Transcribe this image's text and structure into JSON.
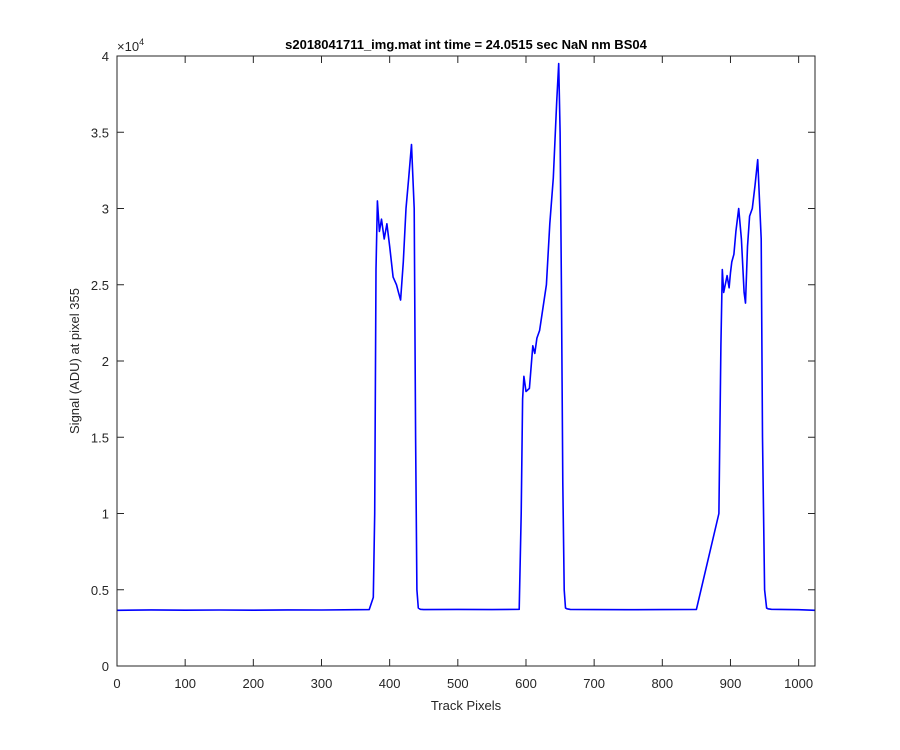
{
  "chart_data": {
    "type": "line",
    "title": "s2018041711_img.mat int time = 24.0515 sec  NaN nm BS04",
    "xlabel": "Track Pixels",
    "ylabel": "Signal (ADU) at pixel 355",
    "xlim": [
      0,
      1024
    ],
    "ylim": [
      0,
      40000
    ],
    "y_exponent_label": "×10",
    "y_exponent_power": "4",
    "xticks": [
      0,
      100,
      200,
      300,
      400,
      500,
      600,
      700,
      800,
      900,
      1000
    ],
    "xtick_labels": [
      "0",
      "100",
      "200",
      "300",
      "400",
      "500",
      "600",
      "700",
      "800",
      "900",
      "1000"
    ],
    "yticks": [
      0,
      5000,
      10000,
      15000,
      20000,
      25000,
      30000,
      35000,
      40000
    ],
    "ytick_labels": [
      "0",
      "0.5",
      "1",
      "1.5",
      "2",
      "2.5",
      "3",
      "3.5",
      "4"
    ],
    "grid": false,
    "line_color": "#0000ff",
    "series": [
      {
        "x": [
          0,
          50,
          100,
          150,
          200,
          250,
          300,
          350,
          370,
          376,
          378,
          380,
          382,
          385,
          388,
          392,
          396,
          400,
          405,
          410,
          413,
          416,
          420,
          424,
          428,
          432,
          436,
          438,
          440,
          442,
          445,
          450,
          500,
          550,
          590,
          593,
          595,
          597,
          600,
          605,
          610,
          613,
          616,
          620,
          625,
          630,
          635,
          640,
          645,
          648,
          650,
          652,
          654,
          656,
          658,
          660,
          665,
          700,
          750,
          800,
          850,
          883,
          886,
          888,
          890,
          895,
          898,
          900,
          902,
          905,
          908,
          912,
          916,
          920,
          922,
          925,
          928,
          932,
          936,
          940,
          945,
          947,
          950,
          953,
          955,
          960,
          1000,
          1024
        ],
        "y": [
          3650,
          3680,
          3660,
          3670,
          3660,
          3680,
          3670,
          3690,
          3700,
          4500,
          10000,
          26000,
          30500,
          28500,
          29300,
          28000,
          29000,
          27500,
          25500,
          25000,
          24500,
          24000,
          26500,
          30000,
          32000,
          34200,
          30000,
          15000,
          5000,
          3800,
          3720,
          3700,
          3710,
          3700,
          3720,
          10000,
          17500,
          19000,
          18000,
          18200,
          21000,
          20500,
          21500,
          22000,
          23500,
          25000,
          29000,
          32000,
          37000,
          39500,
          35000,
          25000,
          12000,
          5000,
          3800,
          3750,
          3710,
          3700,
          3690,
          3700,
          3710,
          10000,
          21000,
          26000,
          24500,
          25600,
          24800,
          25800,
          26500,
          27000,
          28500,
          30000,
          28000,
          24500,
          23800,
          27500,
          29500,
          30000,
          31500,
          33200,
          28000,
          15000,
          5000,
          3800,
          3750,
          3720,
          3690,
          3650
        ]
      }
    ]
  }
}
